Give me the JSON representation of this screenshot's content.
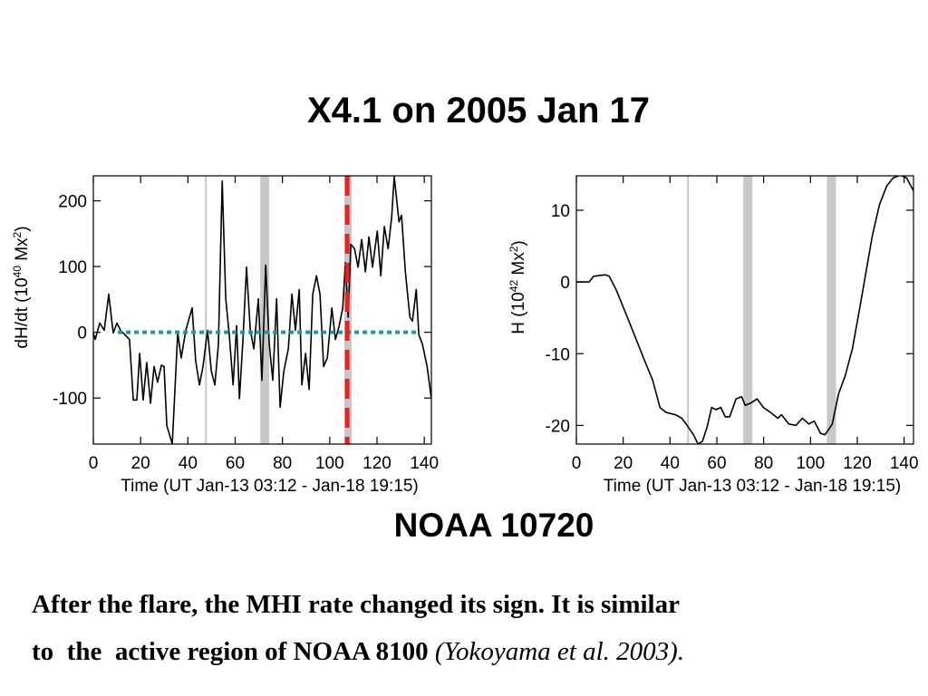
{
  "title": "X4.1 on 2005 Jan 17",
  "label": "NOAA 10720",
  "caption": [
    "After the flare, the MHI rate changed its sign. It is similar",
    "to  the  active region of NOAA 8100"
  ],
  "citation": "(Yokoyama et al. 2003).",
  "chart_data": [
    {
      "type": "line",
      "xlabel": "Time (UT Jan-13 03:12 - Jan-18 19:15)",
      "ylabel": [
        "dH/dt (10",
        "40",
        " Mx",
        "2",
        ")"
      ],
      "x": [
        0,
        0.8,
        2.7,
        4.6,
        6.5,
        8.4,
        10,
        11.5,
        13.4,
        15.3,
        16.9,
        18.4,
        19.6,
        21.1,
        22.6,
        24.2,
        25.7,
        27.2,
        28.8,
        29.9,
        31.1,
        33.4,
        35.7,
        37.2,
        39.1,
        41.8,
        43.3,
        44.9,
        46.4,
        48.3,
        49.9,
        51.4,
        52.9,
        54.5,
        56,
        57.5,
        59.1,
        60.6,
        61.8,
        63.3,
        64.8,
        66.4,
        67.9,
        69.8,
        71.3,
        72.9,
        74.4,
        75.9,
        77.5,
        79,
        80.6,
        82.5,
        84,
        85.5,
        87.1,
        88.2,
        89.8,
        91.3,
        92.8,
        94.4,
        95.9,
        97.4,
        99,
        100.9,
        102.4,
        104,
        105.5,
        106.6,
        107.8,
        108.9,
        110.5,
        112,
        113.5,
        115.1,
        116.6,
        118.1,
        120.1,
        121.6,
        123.1,
        124.7,
        126.2,
        127.3,
        129.3,
        130.4,
        132,
        133.9,
        135,
        136.6,
        137.7,
        139.2,
        141.2,
        143
      ],
      "values": [
        -1,
        -11,
        14,
        3,
        58,
        -1,
        14,
        3,
        -4,
        -11,
        -103,
        -103,
        -32,
        -103,
        -46,
        -108,
        -52,
        -76,
        -50,
        -52,
        -142,
        -170,
        -1,
        -39,
        3,
        37,
        -43,
        -80,
        -52,
        3,
        -59,
        -80,
        -18,
        230,
        51,
        -4,
        -80,
        10,
        -101,
        -11,
        99,
        3,
        -25,
        51,
        -73,
        102,
        -18,
        -73,
        51,
        -114,
        -59,
        -25,
        58,
        3,
        65,
        -80,
        -32,
        -87,
        58,
        86,
        58,
        -52,
        -39,
        37,
        -11,
        10,
        37,
        106,
        23,
        134,
        127,
        99,
        141,
        92,
        145,
        99,
        154,
        86,
        161,
        127,
        175,
        237,
        168,
        178,
        92,
        23,
        17,
        65,
        -4,
        -18,
        -52,
        -101
      ],
      "color": "#000000",
      "xlim": [
        0,
        143
      ],
      "ylim": [
        -170,
        238
      ],
      "xticks": [
        0,
        20,
        40,
        60,
        80,
        100,
        120,
        140
      ],
      "yticks": [
        -100,
        0,
        100,
        200
      ],
      "marker_lines": [
        47.6
      ],
      "bands": [
        [
          70.6,
          74.4
        ],
        [
          106.2,
          109.3
        ]
      ],
      "band_color": "#c8c8c8",
      "flare_line": 107.4,
      "flare_color": "#e8221c",
      "zero_line": {
        "y": 0,
        "from": 10.4,
        "to": 138,
        "color": "#1a9aa0"
      }
    },
    {
      "type": "line",
      "xlabel": "Time (UT Jan-13 03:12 - Jan-18 19:15)",
      "ylabel": [
        "H (10",
        "42",
        " Mx",
        "2",
        ")"
      ],
      "x": [
        0,
        5.4,
        7.4,
        12.4,
        14,
        17,
        21,
        24.8,
        28.7,
        32.6,
        35.7,
        38.4,
        42.3,
        45,
        47.3,
        50,
        52,
        53.9,
        55.8,
        57.8,
        59.7,
        61.7,
        63.6,
        65.5,
        68.2,
        70.6,
        72.1,
        74.4,
        77.2,
        79.9,
        83,
        86.1,
        87.6,
        90.7,
        93.8,
        96.5,
        99.3,
        101.6,
        104.3,
        106.2,
        109.3,
        112,
        114.8,
        117.9,
        121,
        123.7,
        126.4,
        129.5,
        132.6,
        135.3,
        138.4,
        141.1,
        144
      ],
      "values": [
        0,
        0,
        0.8,
        1,
        0.8,
        -1.1,
        -4.3,
        -7.4,
        -10.6,
        -13.7,
        -17.5,
        -18.2,
        -18.5,
        -19,
        -20,
        -21.3,
        -22.6,
        -22.2,
        -20.3,
        -17.5,
        -17.8,
        -17.5,
        -18.8,
        -18.8,
        -16.3,
        -16,
        -17.2,
        -16.9,
        -16.3,
        -17.5,
        -18.2,
        -19,
        -18.5,
        -19.8,
        -20,
        -19,
        -19.8,
        -19.4,
        -21.1,
        -21.3,
        -19.8,
        -15.6,
        -13.1,
        -9.3,
        -3.7,
        1.4,
        6.4,
        10.8,
        13.4,
        14.5,
        14.9,
        14.5,
        12.7
      ],
      "color": "#000000",
      "xlim": [
        0,
        144
      ],
      "ylim": [
        -22.6,
        14.8
      ],
      "xticks": [
        0,
        20,
        40,
        60,
        80,
        100,
        120,
        140
      ],
      "yticks": [
        -20,
        -10,
        0,
        10
      ],
      "marker_lines": [
        47.7
      ],
      "bands": [
        [
          71.3,
          75.2
        ],
        [
          107,
          110.9
        ]
      ],
      "band_color": "#c8c8c8"
    }
  ]
}
